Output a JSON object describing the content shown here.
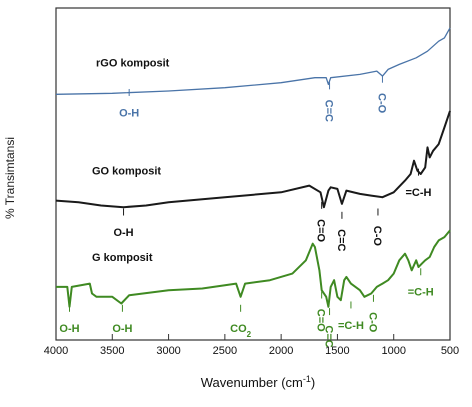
{
  "chart_data": {
    "type": "line",
    "xlabel": "Wavenumber (cm",
    "xlabel_sup": "-1",
    "xlabel_close": ")",
    "ylabel": "% Transimtansi",
    "xlim": [
      4000,
      500
    ],
    "x_reversed": true,
    "ylim": [
      0,
      100
    ],
    "x_ticks": [
      4000,
      3500,
      3000,
      2500,
      2000,
      1500,
      1000,
      500
    ],
    "grid": false,
    "legend": "none",
    "series": [
      {
        "name": "rGO komposit",
        "color": "#4a74a8",
        "offset": 74,
        "points": [
          [
            4000,
            0
          ],
          [
            3500,
            0.3
          ],
          [
            3000,
            1
          ],
          [
            2500,
            2
          ],
          [
            2000,
            3.5
          ],
          [
            1700,
            5
          ],
          [
            1600,
            5
          ],
          [
            1580,
            3
          ],
          [
            1560,
            5
          ],
          [
            1300,
            6
          ],
          [
            1150,
            7
          ],
          [
            1100,
            5.5
          ],
          [
            1050,
            7.5
          ],
          [
            950,
            9
          ],
          [
            800,
            11
          ],
          [
            700,
            13
          ],
          [
            600,
            16
          ],
          [
            550,
            17
          ],
          [
            500,
            20
          ]
        ],
        "labels": [
          {
            "text": "O-H",
            "x": 3350,
            "y": -3
          },
          {
            "text": "C=C",
            "x": 1570,
            "y": -1,
            "rotate": 90
          },
          {
            "text": "C-O",
            "x": 1100,
            "y": 1,
            "rotate": 90
          }
        ]
      },
      {
        "name": "GO komposit",
        "color": "#1a1a1a",
        "offset": 42,
        "points": [
          [
            4000,
            0
          ],
          [
            3800,
            -0.5
          ],
          [
            3600,
            -1.5
          ],
          [
            3400,
            -2
          ],
          [
            3200,
            -1.5
          ],
          [
            3000,
            -0.5
          ],
          [
            2500,
            1
          ],
          [
            2000,
            2.5
          ],
          [
            1750,
            4.5
          ],
          [
            1650,
            2.5
          ],
          [
            1620,
            -2
          ],
          [
            1580,
            3
          ],
          [
            1560,
            4
          ],
          [
            1500,
            3.5
          ],
          [
            1460,
            -1
          ],
          [
            1420,
            3
          ],
          [
            1300,
            2
          ],
          [
            1200,
            1.5
          ],
          [
            1100,
            1
          ],
          [
            1000,
            2.5
          ],
          [
            900,
            6
          ],
          [
            850,
            8
          ],
          [
            820,
            12
          ],
          [
            790,
            9
          ],
          [
            760,
            8
          ],
          [
            720,
            10
          ],
          [
            700,
            16
          ],
          [
            680,
            13
          ],
          [
            650,
            15
          ],
          [
            600,
            17
          ],
          [
            550,
            22
          ],
          [
            500,
            27
          ]
        ],
        "labels": [
          {
            "text": "O-H",
            "x": 3400,
            "y": -7
          },
          {
            "text": "C=O",
            "x": 1640,
            "y": -5,
            "rotate": 90
          },
          {
            "text": "C=C",
            "x": 1460,
            "y": -8,
            "rotate": 90
          },
          {
            "text": "C-O",
            "x": 1140,
            "y": -7,
            "rotate": 90
          },
          {
            "text": "=C-H",
            "x": 780,
            "y": 5
          }
        ]
      },
      {
        "name": "G komposit",
        "color": "#3f8a22",
        "offset": 16,
        "points": [
          [
            4000,
            0
          ],
          [
            3900,
            0
          ],
          [
            3880,
            -6
          ],
          [
            3860,
            0
          ],
          [
            3700,
            1
          ],
          [
            3680,
            -2
          ],
          [
            3640,
            -3
          ],
          [
            3500,
            -3
          ],
          [
            3420,
            -5
          ],
          [
            3350,
            -2.5
          ],
          [
            3000,
            -1
          ],
          [
            2700,
            -0.5
          ],
          [
            2500,
            0.5
          ],
          [
            2400,
            1
          ],
          [
            2360,
            -3
          ],
          [
            2320,
            1
          ],
          [
            2100,
            2
          ],
          [
            1900,
            4
          ],
          [
            1780,
            8
          ],
          [
            1720,
            13
          ],
          [
            1700,
            12
          ],
          [
            1660,
            5
          ],
          [
            1640,
            -1
          ],
          [
            1600,
            -3
          ],
          [
            1580,
            -6
          ],
          [
            1560,
            0
          ],
          [
            1530,
            2
          ],
          [
            1500,
            -3
          ],
          [
            1470,
            -4
          ],
          [
            1440,
            2
          ],
          [
            1420,
            3
          ],
          [
            1380,
            1
          ],
          [
            1300,
            -1
          ],
          [
            1260,
            -3
          ],
          [
            1200,
            -2
          ],
          [
            1150,
            0
          ],
          [
            1100,
            1
          ],
          [
            1050,
            2
          ],
          [
            1000,
            4
          ],
          [
            950,
            8
          ],
          [
            900,
            10
          ],
          [
            870,
            8
          ],
          [
            840,
            5
          ],
          [
            800,
            8
          ],
          [
            780,
            6
          ],
          [
            750,
            7
          ],
          [
            720,
            8
          ],
          [
            680,
            9
          ],
          [
            640,
            12
          ],
          [
            600,
            14
          ],
          [
            550,
            15
          ],
          [
            500,
            17
          ]
        ],
        "labels": [
          {
            "text": "O-H",
            "x": 3880,
            "y": -10
          },
          {
            "text": "O-H",
            "x": 3410,
            "y": -10
          },
          {
            "text": "CO",
            "x": 2360,
            "y": -10,
            "sub": "2"
          },
          {
            "text": "C=O",
            "x": 1640,
            "y": -6,
            "rotate": 90
          },
          {
            "text": "C=C",
            "x": 1570,
            "y": -11,
            "rotate": 90
          },
          {
            "text": "=C-H",
            "x": 1380,
            "y": -9
          },
          {
            "text": "C-O",
            "x": 1180,
            "y": -7,
            "rotate": 90
          },
          {
            "text": "=C-H",
            "x": 760,
            "y": 1
          }
        ]
      }
    ]
  }
}
